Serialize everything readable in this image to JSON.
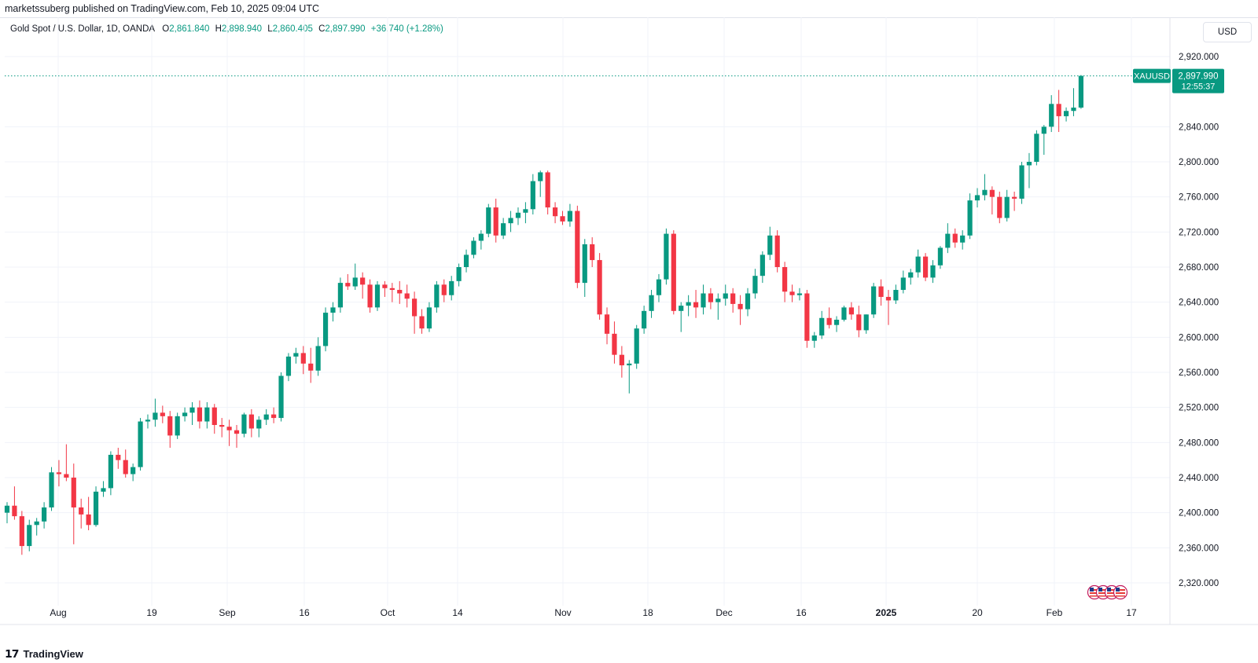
{
  "header": {
    "published": "marketssuberg published on TradingView.com, Feb 10, 2025 09:04 UTC"
  },
  "legend": {
    "symbol": "Gold Spot / U.S. Dollar, 1D, OANDA",
    "open_label": "O",
    "open_value": "2,861.840",
    "high_label": "H",
    "high_value": "2,898.940",
    "low_label": "L",
    "low_value": "2,860.405",
    "close_label": "C",
    "close_value": "2,897.990",
    "change": "+36.740 (+1.28%)"
  },
  "currency_button": "USD",
  "price_badge": {
    "ticker": "XAUUSD",
    "price": "2,897.990",
    "countdown": "12:55:37"
  },
  "footer": {
    "logo_mark": "𝟭𝟳",
    "brand": "TradingView"
  },
  "colors": {
    "up": "#089981",
    "down": "#f23645",
    "grid": "#f0f3fa",
    "axis_text": "#131722",
    "dotted": "#089981"
  },
  "chart_data": {
    "type": "candlestick",
    "symbol": "XAUUSD",
    "y_axis": {
      "ticks": [
        "2,320.000",
        "2,360.000",
        "2,400.000",
        "2,440.000",
        "2,480.000",
        "2,520.000",
        "2,560.000",
        "2,600.000",
        "2,640.000",
        "2,680.000",
        "2,720.000",
        "2,760.000",
        "2,800.000",
        "2,840.000",
        "2,920.000"
      ],
      "tick_values": [
        2320,
        2360,
        2400,
        2440,
        2480,
        2520,
        2560,
        2600,
        2640,
        2680,
        2720,
        2760,
        2800,
        2840,
        2920
      ],
      "ylim": [
        2300,
        2940
      ]
    },
    "x_axis": {
      "labels": [
        {
          "text": "Aug",
          "bar": 0
        },
        {
          "text": "19",
          "bar": 1
        },
        {
          "text": "Sep",
          "bar": 2
        },
        {
          "text": "16",
          "bar": 3
        },
        {
          "text": "Oct",
          "bar": 4
        },
        {
          "text": "14",
          "bar": 5
        },
        {
          "text": "Nov",
          "bar": 6
        },
        {
          "text": "18",
          "bar": 7
        },
        {
          "text": "Dec",
          "bar": 8
        },
        {
          "text": "16",
          "bar": 9
        },
        {
          "text": "2025",
          "bar": 10,
          "bold": true
        },
        {
          "text": "20",
          "bar": 11
        },
        {
          "text": "Feb",
          "bar": 12
        },
        {
          "text": "17",
          "bar": 13
        }
      ]
    },
    "candles": [
      [
        2400,
        2412,
        2388,
        2408
      ],
      [
        2408,
        2430,
        2392,
        2396
      ],
      [
        2396,
        2402,
        2352,
        2362
      ],
      [
        2362,
        2392,
        2356,
        2386
      ],
      [
        2386,
        2394,
        2374,
        2390
      ],
      [
        2390,
        2412,
        2382,
        2406
      ],
      [
        2406,
        2452,
        2402,
        2446
      ],
      [
        2446,
        2460,
        2430,
        2444
      ],
      [
        2444,
        2478,
        2436,
        2440
      ],
      [
        2440,
        2456,
        2364,
        2406
      ],
      [
        2406,
        2416,
        2382,
        2398
      ],
      [
        2398,
        2418,
        2380,
        2386
      ],
      [
        2386,
        2430,
        2384,
        2424
      ],
      [
        2424,
        2436,
        2418,
        2428
      ],
      [
        2428,
        2470,
        2420,
        2466
      ],
      [
        2466,
        2474,
        2450,
        2460
      ],
      [
        2460,
        2472,
        2440,
        2444
      ],
      [
        2444,
        2456,
        2436,
        2452
      ],
      [
        2452,
        2508,
        2448,
        2504
      ],
      [
        2504,
        2512,
        2496,
        2506
      ],
      [
        2506,
        2530,
        2498,
        2514
      ],
      [
        2514,
        2522,
        2502,
        2510
      ],
      [
        2510,
        2516,
        2474,
        2488
      ],
      [
        2488,
        2514,
        2484,
        2510
      ],
      [
        2510,
        2520,
        2504,
        2514
      ],
      [
        2514,
        2526,
        2500,
        2520
      ],
      [
        2520,
        2528,
        2496,
        2504
      ],
      [
        2504,
        2526,
        2496,
        2520
      ],
      [
        2520,
        2524,
        2490,
        2500
      ],
      [
        2500,
        2508,
        2486,
        2498
      ],
      [
        2498,
        2506,
        2476,
        2494
      ],
      [
        2494,
        2500,
        2474,
        2490
      ],
      [
        2490,
        2514,
        2486,
        2512
      ],
      [
        2512,
        2518,
        2486,
        2496
      ],
      [
        2496,
        2510,
        2486,
        2506
      ],
      [
        2506,
        2518,
        2500,
        2512
      ],
      [
        2512,
        2520,
        2502,
        2508
      ],
      [
        2508,
        2560,
        2504,
        2556
      ],
      [
        2556,
        2582,
        2550,
        2578
      ],
      [
        2578,
        2588,
        2570,
        2582
      ],
      [
        2582,
        2590,
        2558,
        2570
      ],
      [
        2570,
        2588,
        2548,
        2562
      ],
      [
        2562,
        2600,
        2556,
        2590
      ],
      [
        2590,
        2634,
        2584,
        2628
      ],
      [
        2628,
        2640,
        2618,
        2634
      ],
      [
        2634,
        2668,
        2628,
        2662
      ],
      [
        2662,
        2672,
        2654,
        2658
      ],
      [
        2658,
        2684,
        2654,
        2668
      ],
      [
        2668,
        2674,
        2644,
        2660
      ],
      [
        2660,
        2666,
        2628,
        2634
      ],
      [
        2634,
        2664,
        2630,
        2660
      ],
      [
        2660,
        2664,
        2646,
        2656
      ],
      [
        2656,
        2662,
        2640,
        2654
      ],
      [
        2654,
        2664,
        2638,
        2650
      ],
      [
        2650,
        2660,
        2634,
        2644
      ],
      [
        2644,
        2652,
        2604,
        2624
      ],
      [
        2624,
        2632,
        2604,
        2610
      ],
      [
        2610,
        2640,
        2606,
        2634
      ],
      [
        2634,
        2664,
        2628,
        2660
      ],
      [
        2660,
        2666,
        2640,
        2648
      ],
      [
        2648,
        2670,
        2642,
        2664
      ],
      [
        2664,
        2684,
        2658,
        2680
      ],
      [
        2680,
        2700,
        2674,
        2694
      ],
      [
        2694,
        2714,
        2690,
        2710
      ],
      [
        2710,
        2722,
        2700,
        2718
      ],
      [
        2718,
        2752,
        2714,
        2748
      ],
      [
        2748,
        2758,
        2708,
        2716
      ],
      [
        2716,
        2736,
        2712,
        2730
      ],
      [
        2730,
        2744,
        2720,
        2736
      ],
      [
        2736,
        2748,
        2728,
        2742
      ],
      [
        2742,
        2754,
        2730,
        2746
      ],
      [
        2746,
        2786,
        2740,
        2778
      ],
      [
        2778,
        2790,
        2760,
        2788
      ],
      [
        2788,
        2790,
        2740,
        2748
      ],
      [
        2748,
        2754,
        2730,
        2738
      ],
      [
        2738,
        2744,
        2728,
        2732
      ],
      [
        2732,
        2752,
        2726,
        2744
      ],
      [
        2744,
        2750,
        2656,
        2662
      ],
      [
        2662,
        2712,
        2646,
        2706
      ],
      [
        2706,
        2714,
        2680,
        2688
      ],
      [
        2688,
        2696,
        2620,
        2626
      ],
      [
        2626,
        2634,
        2592,
        2604
      ],
      [
        2604,
        2618,
        2570,
        2580
      ],
      [
        2580,
        2590,
        2554,
        2568
      ],
      [
        2568,
        2574,
        2536,
        2570
      ],
      [
        2570,
        2614,
        2564,
        2610
      ],
      [
        2610,
        2636,
        2604,
        2630
      ],
      [
        2630,
        2654,
        2622,
        2648
      ],
      [
        2648,
        2672,
        2640,
        2666
      ],
      [
        2666,
        2724,
        2660,
        2718
      ],
      [
        2718,
        2722,
        2626,
        2630
      ],
      [
        2630,
        2640,
        2606,
        2636
      ],
      [
        2636,
        2648,
        2624,
        2640
      ],
      [
        2640,
        2654,
        2622,
        2634
      ],
      [
        2634,
        2660,
        2626,
        2650
      ],
      [
        2650,
        2656,
        2632,
        2640
      ],
      [
        2640,
        2650,
        2620,
        2644
      ],
      [
        2644,
        2660,
        2636,
        2650
      ],
      [
        2650,
        2656,
        2628,
        2638
      ],
      [
        2638,
        2648,
        2614,
        2632
      ],
      [
        2632,
        2656,
        2624,
        2650
      ],
      [
        2650,
        2678,
        2644,
        2670
      ],
      [
        2670,
        2698,
        2662,
        2694
      ],
      [
        2694,
        2726,
        2688,
        2716
      ],
      [
        2716,
        2722,
        2674,
        2680
      ],
      [
        2680,
        2686,
        2640,
        2652
      ],
      [
        2652,
        2660,
        2640,
        2648
      ],
      [
        2648,
        2656,
        2642,
        2650
      ],
      [
        2650,
        2654,
        2588,
        2596
      ],
      [
        2596,
        2606,
        2588,
        2602
      ],
      [
        2602,
        2630,
        2598,
        2622
      ],
      [
        2622,
        2634,
        2610,
        2614
      ],
      [
        2614,
        2624,
        2606,
        2620
      ],
      [
        2620,
        2636,
        2618,
        2634
      ],
      [
        2634,
        2640,
        2620,
        2626
      ],
      [
        2626,
        2636,
        2600,
        2608
      ],
      [
        2608,
        2626,
        2604,
        2626
      ],
      [
        2626,
        2662,
        2622,
        2658
      ],
      [
        2658,
        2666,
        2636,
        2646
      ],
      [
        2646,
        2654,
        2614,
        2642
      ],
      [
        2642,
        2660,
        2638,
        2654
      ],
      [
        2654,
        2676,
        2650,
        2668
      ],
      [
        2668,
        2678,
        2660,
        2674
      ],
      [
        2674,
        2700,
        2668,
        2692
      ],
      [
        2692,
        2696,
        2664,
        2668
      ],
      [
        2668,
        2688,
        2662,
        2682
      ],
      [
        2682,
        2704,
        2678,
        2702
      ],
      [
        2702,
        2730,
        2696,
        2718
      ],
      [
        2718,
        2724,
        2702,
        2708
      ],
      [
        2708,
        2722,
        2700,
        2716
      ],
      [
        2716,
        2764,
        2712,
        2756
      ],
      [
        2756,
        2770,
        2748,
        2762
      ],
      [
        2762,
        2786,
        2756,
        2768
      ],
      [
        2768,
        2772,
        2740,
        2760
      ],
      [
        2760,
        2766,
        2730,
        2736
      ],
      [
        2736,
        2768,
        2732,
        2760
      ],
      [
        2760,
        2766,
        2744,
        2758
      ],
      [
        2758,
        2800,
        2752,
        2796
      ],
      [
        2796,
        2810,
        2770,
        2800
      ],
      [
        2800,
        2836,
        2796,
        2832
      ],
      [
        2832,
        2842,
        2808,
        2840
      ],
      [
        2840,
        2876,
        2834,
        2866
      ],
      [
        2866,
        2882,
        2834,
        2852
      ],
      [
        2852,
        2862,
        2846,
        2858
      ],
      [
        2858,
        2884,
        2852,
        2861.84
      ],
      [
        2861.84,
        2898.94,
        2860.405,
        2897.99
      ]
    ],
    "last_price": 2897.99
  }
}
